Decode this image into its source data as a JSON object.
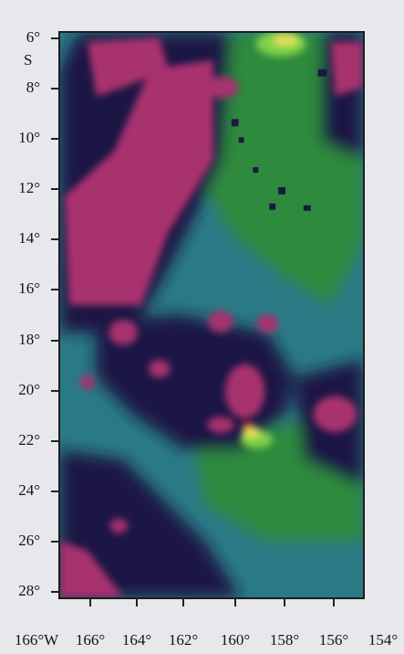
{
  "map": {
    "lat_labels": [
      {
        "text": "6°",
        "lat": 6
      },
      {
        "text": "8°",
        "lat": 8
      },
      {
        "text": "10°",
        "lat": 10
      },
      {
        "text": "12°",
        "lat": 12
      },
      {
        "text": "14°",
        "lat": 14
      },
      {
        "text": "16°",
        "lat": 16
      },
      {
        "text": "18°",
        "lat": 18
      },
      {
        "text": "20°",
        "lat": 20
      },
      {
        "text": "22°",
        "lat": 22
      },
      {
        "text": "24°",
        "lat": 24
      },
      {
        "text": "26°",
        "lat": 26
      },
      {
        "text": "28°",
        "lat": 28
      }
    ],
    "hemisphere_label": "S",
    "lon_labels": [
      {
        "text": "166°W",
        "lon": 166
      },
      {
        "text": "166°",
        "lon": 166
      },
      {
        "text": "164°",
        "lon": 164
      },
      {
        "text": "162°",
        "lon": 162
      },
      {
        "text": "160°",
        "lon": 160
      },
      {
        "text": "158°",
        "lon": 158
      },
      {
        "text": "156°",
        "lon": 156
      },
      {
        "text": "154°",
        "lon": 154
      }
    ],
    "colors": {
      "background": "#e6e8ec",
      "magenta": "#a8306e",
      "navy": "#1c1844",
      "teal": "#2a7a86",
      "green": "#2f8a3c",
      "bright_green": "#7fd24a",
      "yellow": "#e6e05a",
      "red": "#c8283a"
    }
  }
}
